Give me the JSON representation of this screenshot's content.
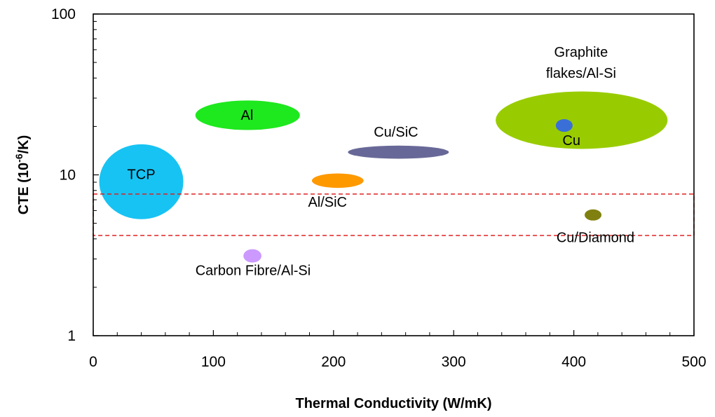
{
  "chart_data": {
    "type": "scatter",
    "title": "",
    "xlabel": "Thermal Conductivity (W/mK)",
    "ylabel": {
      "prefix": "CTE (10",
      "sup": "-6",
      "suffix": "/K)"
    },
    "x_range": [
      0,
      500
    ],
    "y_range": [
      1,
      100
    ],
    "y_scale": "log",
    "x_ticks": [
      0,
      100,
      200,
      300,
      400,
      500
    ],
    "x_tick_labels": [
      "0",
      "100",
      "200",
      "300",
      "400",
      "500"
    ],
    "y_ticks": [
      1,
      10,
      100
    ],
    "y_tick_labels": [
      "1",
      "10",
      "100"
    ],
    "grid": false,
    "regions": [
      {
        "label": "TCP",
        "x": [
          5,
          75
        ],
        "y": [
          5.3,
          15.5
        ],
        "color": "#17c3f3",
        "label_at": [
          40,
          10.1
        ]
      },
      {
        "label": "Al",
        "x": [
          85,
          172
        ],
        "y": [
          19,
          29
        ],
        "color": "#1ee81e",
        "label_at": [
          128,
          23.6
        ]
      },
      {
        "label": "Cu/SiC",
        "x": [
          212,
          296
        ],
        "y": [
          12.6,
          15.2
        ],
        "color": "#686898",
        "label_at": [
          252,
          18.5
        ]
      },
      {
        "label": "Al/SiC",
        "x": [
          182,
          225
        ],
        "y": [
          8.3,
          10.2
        ],
        "color": "#ff9900",
        "label_at": [
          195,
          6.8
        ]
      },
      {
        "label": "Graphite flakes/Al-Si",
        "lines": [
          "Graphite",
          "flakes/Al-Si"
        ],
        "x": [
          335,
          478
        ],
        "y": [
          14.5,
          33
        ],
        "color": "#99cc00",
        "label_at": [
          406,
          50
        ]
      },
      {
        "label": "Carbon Fibre/Al-Si",
        "x": [
          125,
          140
        ],
        "y": [
          2.85,
          3.45
        ],
        "color": "#cc99ff",
        "label_at": [
          133,
          2.55
        ]
      },
      {
        "label": "Cu",
        "x": [
          385,
          399
        ],
        "y": [
          18.5,
          22.2
        ],
        "color": "#3a6fd8",
        "label_at": [
          398,
          16.4
        ]
      },
      {
        "label": "Cu/Diamond",
        "x": [
          409,
          423
        ],
        "y": [
          5.2,
          6.1
        ],
        "color": "#808010",
        "label_at": [
          418,
          4.1
        ]
      }
    ],
    "highlight_box": {
      "x": [
        0,
        500
      ],
      "y": [
        4.2,
        7.6
      ],
      "color": "#e02020",
      "style": "dashed"
    }
  }
}
